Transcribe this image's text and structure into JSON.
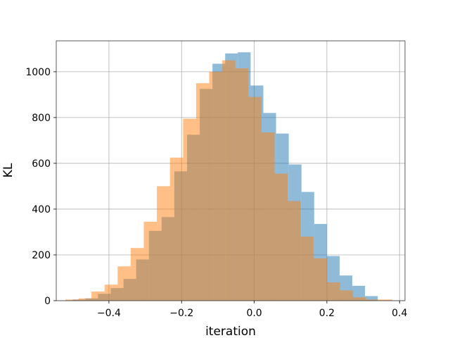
{
  "chart_data": {
    "type": "bar",
    "xlabel": "iteration",
    "ylabel": "KL",
    "xlim": [
      -0.545,
      0.415
    ],
    "ylim": [
      0,
      1135
    ],
    "x_ticks": [
      -0.4,
      -0.2,
      0.0,
      0.2,
      0.4
    ],
    "x_tick_labels": [
      "−0.4",
      "−0.2",
      "0.0",
      "0.2",
      "0.4"
    ],
    "y_ticks": [
      0,
      200,
      400,
      600,
      800,
      1000
    ],
    "y_tick_labels": [
      "0",
      "200",
      "400",
      "600",
      "800",
      "1000"
    ],
    "grid": true,
    "series": [
      {
        "color": "#1f77b4",
        "alpha": 0.5,
        "bin_edges": [
          -0.5,
          -0.465,
          -0.43,
          -0.395,
          -0.36,
          -0.325,
          -0.29,
          -0.255,
          -0.22,
          -0.185,
          -0.15,
          -0.115,
          -0.08,
          -0.045,
          -0.01,
          0.025,
          0.06,
          0.095,
          0.13,
          0.165,
          0.2,
          0.235,
          0.27,
          0.305,
          0.34
        ],
        "values": [
          5,
          10,
          30,
          55,
          95,
          180,
          305,
          365,
          565,
          725,
          925,
          1035,
          1080,
          1085,
          940,
          820,
          730,
          595,
          475,
          335,
          195,
          110,
          65,
          20
        ]
      },
      {
        "color": "#ff7f0e",
        "alpha": 0.5,
        "bin_edges": [
          -0.52,
          -0.484,
          -0.448,
          -0.412,
          -0.376,
          -0.34,
          -0.304,
          -0.268,
          -0.232,
          -0.196,
          -0.16,
          -0.124,
          -0.088,
          -0.052,
          -0.016,
          0.02,
          0.056,
          0.092,
          0.128,
          0.164,
          0.2,
          0.236,
          0.272,
          0.308,
          0.344,
          0.38
        ],
        "values": [
          5,
          10,
          40,
          70,
          150,
          230,
          345,
          500,
          625,
          795,
          950,
          1000,
          1050,
          1015,
          890,
          735,
          555,
          435,
          280,
          185,
          80,
          45,
          15,
          5,
          5
        ]
      }
    ]
  }
}
